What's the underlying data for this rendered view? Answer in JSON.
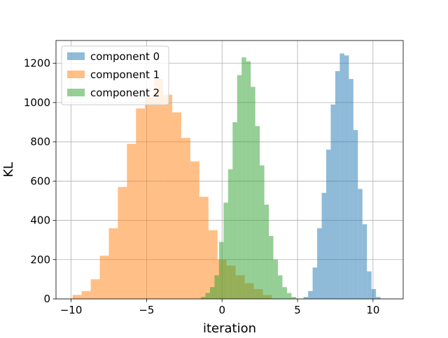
{
  "chart_data": {
    "type": "histogram",
    "title": "",
    "xlabel": "iteration",
    "ylabel": "KL",
    "xlim": [
      -11.0,
      12.0
    ],
    "ylim": [
      0,
      1316
    ],
    "x_ticks": [
      -10,
      -5,
      0,
      5,
      10
    ],
    "y_ticks": [
      0,
      200,
      400,
      600,
      800,
      1000,
      1200
    ],
    "grid": true,
    "legend_position": "top-left",
    "series": [
      {
        "name": "component 0",
        "color": "#1f77b4",
        "alpha": 0.5,
        "bin_edges": [
          5.4,
          5.7,
          6.0,
          6.3,
          6.6,
          6.9,
          7.2,
          7.5,
          7.8,
          8.1,
          8.4,
          8.7,
          9.0,
          9.3,
          9.6,
          9.9,
          10.2,
          10.5
        ],
        "counts": [
          10,
          40,
          160,
          360,
          540,
          760,
          990,
          1160,
          1250,
          1240,
          1120,
          860,
          560,
          380,
          140,
          50,
          10
        ]
      },
      {
        "name": "component 1",
        "color": "#ff7f0e",
        "alpha": 0.5,
        "bin_edges": [
          -9.9,
          -9.3,
          -8.7,
          -8.1,
          -7.5,
          -6.9,
          -6.3,
          -5.7,
          -5.1,
          -4.5,
          -3.9,
          -3.3,
          -2.7,
          -2.1,
          -1.5,
          -0.9,
          -0.3,
          0.3,
          0.9,
          1.5,
          2.1,
          2.7,
          3.3
        ],
        "counts": [
          20,
          40,
          100,
          220,
          360,
          570,
          790,
          970,
          1030,
          1120,
          1040,
          950,
          820,
          700,
          520,
          350,
          200,
          170,
          120,
          80,
          50,
          20
        ]
      },
      {
        "name": "component 2",
        "color": "#2ca02c",
        "alpha": 0.5,
        "bin_edges": [
          -1.4,
          -1.1,
          -0.8,
          -0.5,
          -0.2,
          0.1,
          0.4,
          0.7,
          1.0,
          1.3,
          1.6,
          1.9,
          2.2,
          2.5,
          2.8,
          3.1,
          3.4,
          3.7,
          4.0,
          4.3,
          4.6,
          4.9
        ],
        "counts": [
          10,
          30,
          60,
          120,
          290,
          490,
          660,
          900,
          1140,
          1230,
          1210,
          1080,
          880,
          680,
          480,
          320,
          200,
          120,
          60,
          30,
          10
        ]
      }
    ]
  }
}
